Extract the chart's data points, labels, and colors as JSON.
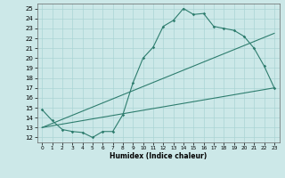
{
  "xlabel": "Humidex (Indice chaleur)",
  "xlim": [
    -0.5,
    23.5
  ],
  "ylim": [
    11.5,
    25.5
  ],
  "yticks": [
    12,
    13,
    14,
    15,
    16,
    17,
    18,
    19,
    20,
    21,
    22,
    23,
    24,
    25
  ],
  "xticks": [
    0,
    1,
    2,
    3,
    4,
    5,
    6,
    7,
    8,
    9,
    10,
    11,
    12,
    13,
    14,
    15,
    16,
    17,
    18,
    19,
    20,
    21,
    22,
    23
  ],
  "bg_color": "#cce8e8",
  "line_color": "#2e7d6e",
  "grid_color": "#aad4d4",
  "line1_x": [
    0,
    1,
    2,
    3,
    4,
    5,
    6,
    7,
    8,
    9,
    10,
    11,
    12,
    13,
    14,
    15,
    16,
    17,
    18,
    19,
    20,
    21,
    22,
    23
  ],
  "line1_y": [
    14.8,
    13.7,
    12.8,
    12.6,
    12.5,
    12.0,
    12.6,
    12.6,
    14.3,
    17.5,
    20.0,
    21.1,
    23.2,
    23.8,
    25.0,
    24.4,
    24.5,
    23.2,
    23.0,
    22.8,
    22.2,
    21.0,
    19.2,
    17.0
  ],
  "line2_x": [
    0,
    23
  ],
  "line2_y": [
    13.0,
    17.0
  ],
  "line3_x": [
    0,
    23
  ],
  "line3_y": [
    13.0,
    22.5
  ]
}
